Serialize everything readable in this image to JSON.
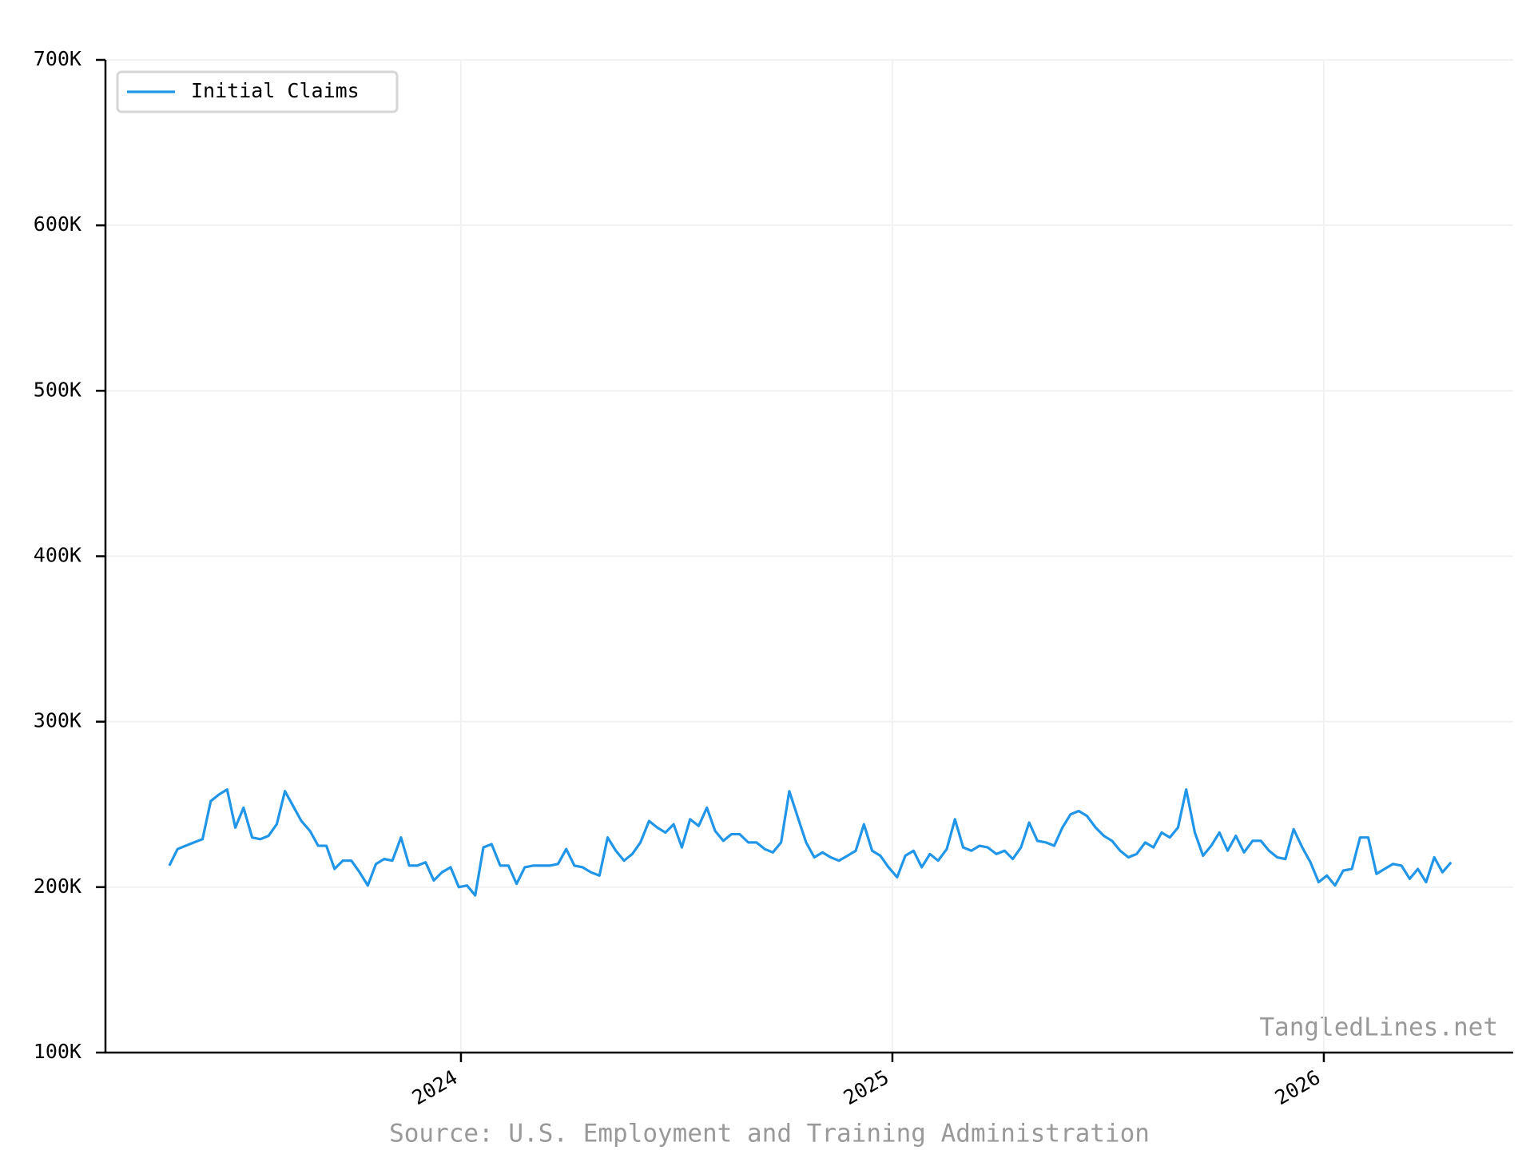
{
  "chart_data": {
    "type": "line",
    "source": "Source: U.S. Employment and Training Administration",
    "watermark": "TangledLines.net",
    "x": [
      2023.324,
      2023.343,
      2023.362,
      2023.381,
      2023.401,
      2023.42,
      2023.439,
      2023.458,
      2023.477,
      2023.496,
      2023.516,
      2023.535,
      2023.554,
      2023.573,
      2023.592,
      2023.611,
      2023.63,
      2023.65,
      2023.669,
      2023.688,
      2023.707,
      2023.726,
      2023.746,
      2023.765,
      2023.784,
      2023.803,
      2023.822,
      2023.841,
      2023.861,
      2023.88,
      2023.899,
      2023.918,
      2023.937,
      2023.956,
      2023.976,
      2023.995,
      2024.014,
      2024.033,
      2024.052,
      2024.071,
      2024.091,
      2024.11,
      2024.129,
      2024.148,
      2024.167,
      2024.186,
      2024.206,
      2024.225,
      2024.244,
      2024.263,
      2024.282,
      2024.301,
      2024.321,
      2024.34,
      2024.359,
      2024.378,
      2024.397,
      2024.416,
      2024.436,
      2024.455,
      2024.474,
      2024.493,
      2024.512,
      2024.531,
      2024.551,
      2024.57,
      2024.589,
      2024.608,
      2024.627,
      2024.646,
      2024.666,
      2024.685,
      2024.704,
      2024.723,
      2024.742,
      2024.761,
      2024.781,
      2024.8,
      2024.819,
      2024.838,
      2024.857,
      2024.876,
      2024.896,
      2024.915,
      2024.934,
      2024.953,
      2024.972,
      2024.991,
      2025.011,
      2025.03,
      2025.049,
      2025.068,
      2025.087,
      2025.106,
      2025.126,
      2025.145,
      2025.164,
      2025.183,
      2025.202,
      2025.221,
      2025.241,
      2025.26,
      2025.279,
      2025.298,
      2025.317,
      2025.336,
      2025.356,
      2025.375,
      2025.394,
      2025.413,
      2025.432,
      2025.451,
      2025.471,
      2025.49,
      2025.509,
      2025.528,
      2025.547,
      2025.566,
      2025.586,
      2025.605,
      2025.624,
      2025.643,
      2025.662,
      2025.681,
      2025.701,
      2025.72,
      2025.739,
      2025.758,
      2025.777,
      2025.796,
      2025.815,
      2025.835,
      2025.854,
      2025.873,
      2025.892,
      2025.911,
      2025.93,
      2025.95,
      2025.969,
      2025.988,
      2026.007,
      2026.026,
      2026.045,
      2026.065,
      2026.084,
      2026.103,
      2026.122,
      2026.141,
      2026.16,
      2026.18,
      2026.199,
      2026.218,
      2026.237,
      2026.256,
      2026.275,
      2026.295
    ],
    "series": [
      {
        "name": "Initial Claims",
        "color": "#2196e8",
        "values": [
          213000,
          223000,
          225000,
          227000,
          229000,
          252000,
          256000,
          259000,
          236000,
          248000,
          230000,
          229000,
          231000,
          238000,
          258000,
          249000,
          240000,
          234000,
          225000,
          225000,
          211000,
          216000,
          216000,
          209000,
          201000,
          214000,
          217000,
          216000,
          230000,
          213000,
          213000,
          215000,
          204000,
          209000,
          212000,
          200000,
          201000,
          195000,
          224000,
          226000,
          213000,
          213000,
          202000,
          212000,
          213000,
          213000,
          213000,
          214000,
          223000,
          213000,
          212000,
          209000,
          207000,
          230000,
          222000,
          216000,
          220000,
          227000,
          240000,
          236000,
          233000,
          238000,
          224000,
          241000,
          237000,
          248000,
          234000,
          228000,
          232000,
          232000,
          227000,
          227000,
          223000,
          221000,
          227000,
          258000,
          242000,
          227000,
          218000,
          221000,
          218000,
          216000,
          219000,
          222000,
          238000,
          222000,
          219000,
          212000,
          206000,
          219000,
          222000,
          212000,
          220000,
          216000,
          223000,
          241000,
          224000,
          222000,
          225000,
          224000,
          220000,
          222000,
          217000,
          224000,
          239000,
          228000,
          227000,
          225000,
          236000,
          244000,
          246000,
          243000,
          236000,
          231000,
          228000,
          222000,
          218000,
          220000,
          227000,
          224000,
          233000,
          230000,
          236000,
          259000,
          233000,
          219000,
          225000,
          233000,
          222000,
          231000,
          221000,
          228000,
          228000,
          222000,
          218000,
          217000,
          235000,
          224000,
          215000,
          203000,
          207000,
          201000,
          210000,
          211000,
          230000,
          230000,
          208000,
          211000,
          214000,
          213000,
          205000,
          211000,
          203000,
          218000,
          209000,
          215000
        ]
      }
    ],
    "xlim": [
      2023.176,
      2026.439
    ],
    "xticks": [
      2024,
      2025,
      2026
    ],
    "ylim": [
      100000,
      700000
    ],
    "yticks": [
      {
        "value": 100000,
        "label": "100K"
      },
      {
        "value": 200000,
        "label": "200K"
      },
      {
        "value": 300000,
        "label": "300K"
      },
      {
        "value": 400000,
        "label": "400K"
      },
      {
        "value": 500000,
        "label": "500K"
      },
      {
        "value": 600000,
        "label": "600K"
      },
      {
        "value": 700000,
        "label": "700K"
      }
    ],
    "grid": true,
    "legend": "upper left"
  }
}
